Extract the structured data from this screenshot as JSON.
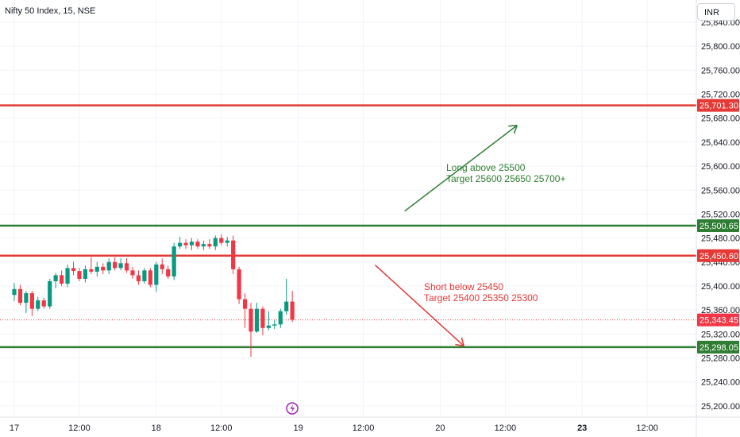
{
  "header": {
    "title": "Nifty 50 Index, 15, NSE",
    "currency": "INR"
  },
  "colors": {
    "up": "#089981",
    "down": "#f23645",
    "resistance": "#e53935",
    "support": "#2e7d32",
    "grid": "#f0f3fa",
    "axis_text": "#131722"
  },
  "chart_data": {
    "type": "candlestick",
    "title": "Nifty 50 Index, 15, NSE",
    "ylim": [
      25180,
      25860
    ],
    "y_ticks": [
      "25,200.00",
      "25,240.00",
      "25,280.00",
      "25,320.00",
      "25,360.00",
      "25,400.00",
      "25,440.00",
      "25,480.00",
      "25,520.00",
      "25,560.00",
      "25,600.00",
      "25,640.00",
      "25,680.00",
      "25,720.00",
      "25,760.00",
      "25,800.00",
      "25,840.00"
    ],
    "y_tick_values": [
      25200,
      25240,
      25280,
      25320,
      25360,
      25400,
      25440,
      25480,
      25520,
      25560,
      25600,
      25640,
      25680,
      25720,
      25760,
      25800,
      25840
    ],
    "x_ticks": [
      {
        "label": "17",
        "bold": false,
        "slot": 0
      },
      {
        "label": "12:00",
        "bold": false,
        "slot": 11
      },
      {
        "label": "18",
        "bold": false,
        "slot": 24
      },
      {
        "label": "12:00",
        "bold": false,
        "slot": 35
      },
      {
        "label": "19",
        "bold": false,
        "slot": 48
      },
      {
        "label": "12:00",
        "bold": false,
        "slot": 59
      },
      {
        "label": "20",
        "bold": false,
        "slot": 72
      },
      {
        "label": "12:00",
        "bold": false,
        "slot": 83
      },
      {
        "label": "23",
        "bold": true,
        "slot": 96
      },
      {
        "label": "12:00",
        "bold": false,
        "slot": 107
      }
    ],
    "candles": [
      [
        25385,
        25405,
        25375,
        25395
      ],
      [
        25395,
        25402,
        25368,
        25372
      ],
      [
        25372,
        25392,
        25355,
        25388
      ],
      [
        25388,
        25392,
        25350,
        25362
      ],
      [
        25362,
        25382,
        25358,
        25376
      ],
      [
        25376,
        25380,
        25362,
        25366
      ],
      [
        25366,
        25412,
        25362,
        25408
      ],
      [
        25408,
        25422,
        25396,
        25418
      ],
      [
        25418,
        25426,
        25400,
        25404
      ],
      [
        25404,
        25436,
        25398,
        25430
      ],
      [
        25430,
        25440,
        25418,
        25425
      ],
      [
        25425,
        25430,
        25408,
        25412
      ],
      [
        25412,
        25434,
        25406,
        25428
      ],
      [
        25428,
        25448,
        25420,
        25424
      ],
      [
        25424,
        25440,
        25416,
        25432
      ],
      [
        25432,
        25438,
        25420,
        25426
      ],
      [
        25426,
        25446,
        25420,
        25440
      ],
      [
        25440,
        25448,
        25426,
        25430
      ],
      [
        25430,
        25446,
        25426,
        25438
      ],
      [
        25438,
        25446,
        25422,
        25426
      ],
      [
        25426,
        25432,
        25412,
        25418
      ],
      [
        25418,
        25426,
        25402,
        25408
      ],
      [
        25408,
        25430,
        25404,
        25426
      ],
      [
        25426,
        25430,
        25398,
        25402
      ],
      [
        25402,
        25440,
        25390,
        25436
      ],
      [
        25436,
        25446,
        25420,
        25428
      ],
      [
        25428,
        25434,
        25412,
        25416
      ],
      [
        25416,
        25472,
        25410,
        25466
      ],
      [
        25466,
        25482,
        25462,
        25472
      ],
      [
        25472,
        25478,
        25462,
        25468
      ],
      [
        25468,
        25480,
        25460,
        25474
      ],
      [
        25474,
        25478,
        25462,
        25466
      ],
      [
        25466,
        25476,
        25460,
        25470
      ],
      [
        25470,
        25478,
        25462,
        25466
      ],
      [
        25466,
        25484,
        25460,
        25480
      ],
      [
        25480,
        25486,
        25468,
        25472
      ],
      [
        25472,
        25482,
        25466,
        25476
      ],
      [
        25476,
        25484,
        25420,
        25428
      ],
      [
        25428,
        25432,
        25370,
        25378
      ],
      [
        25378,
        25388,
        25330,
        25362
      ],
      [
        25362,
        25372,
        25282,
        25324
      ],
      [
        25324,
        25372,
        25322,
        25362
      ],
      [
        25362,
        25366,
        25318,
        25330
      ],
      [
        25330,
        25358,
        25326,
        25334
      ],
      [
        25334,
        25344,
        25328,
        25336
      ],
      [
        25336,
        25362,
        25330,
        25358
      ],
      [
        25358,
        25412,
        25352,
        25374
      ],
      [
        25374,
        25392,
        25340,
        25344
      ]
    ],
    "levels": [
      {
        "value": 25701.3,
        "label": "25,701.30",
        "color": "red"
      },
      {
        "value": 25500.65,
        "label": "25,500.65",
        "color": "green"
      },
      {
        "value": 25450.6,
        "label": "25,450.60",
        "color": "red"
      },
      {
        "value": 25298.05,
        "label": "25,298.05",
        "color": "green"
      }
    ],
    "last_price": {
      "value": 25343.45,
      "label": "25,343.45"
    },
    "annotations": [
      {
        "name": "long-note",
        "lines": [
          "Long above 25500",
          "Target 25600 25650 25700+"
        ],
        "color": "green"
      },
      {
        "name": "short-note",
        "lines": [
          "Short below 25450",
          "Target 25400 25350 25300"
        ],
        "color": "red"
      }
    ],
    "arrows": [
      {
        "name": "long-arrow",
        "from": {
          "slot": 66,
          "y": 25525
        },
        "to": {
          "slot": 85,
          "y": 25668
        },
        "color": "green"
      },
      {
        "name": "short-arrow",
        "from": {
          "slot": 61,
          "y": 25435
        },
        "to": {
          "slot": 76,
          "y": 25300
        },
        "color": "red"
      }
    ]
  }
}
